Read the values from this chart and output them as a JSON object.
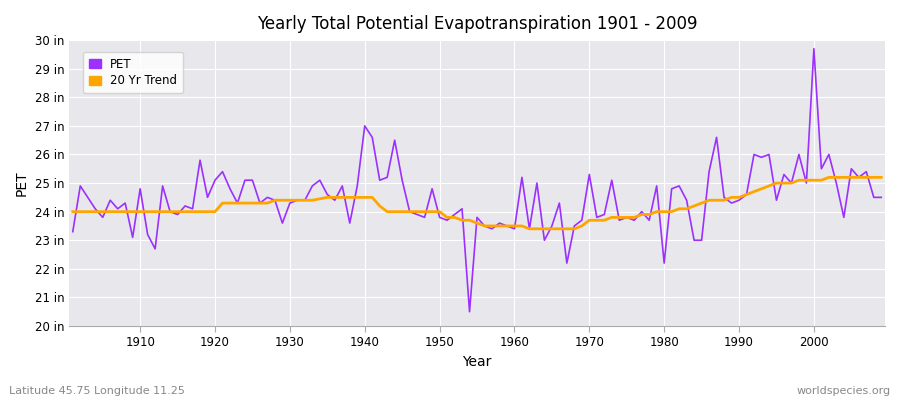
{
  "title": "Yearly Total Potential Evapotranspiration 1901 - 2009",
  "xlabel": "Year",
  "ylabel": "PET",
  "subtitle_left": "Latitude 45.75 Longitude 11.25",
  "subtitle_right": "worldspecies.org",
  "ylim": [
    20,
    30
  ],
  "ytick_labels": [
    "20 in",
    "21 in",
    "22 in",
    "23 in",
    "24 in",
    "25 in",
    "26 in",
    "27 in",
    "28 in",
    "29 in",
    "30 in"
  ],
  "ytick_values": [
    20,
    21,
    22,
    23,
    24,
    25,
    26,
    27,
    28,
    29,
    30
  ],
  "xtick_values": [
    1910,
    1920,
    1930,
    1940,
    1950,
    1960,
    1970,
    1980,
    1990,
    2000
  ],
  "pet_color": "#9B30FF",
  "trend_color": "#FFA500",
  "fig_background": "#FFFFFF",
  "plot_background": "#E8E8EC",
  "grid_color": "#FFFFFF",
  "pet_linewidth": 1.2,
  "trend_linewidth": 2.0,
  "years": [
    1901,
    1902,
    1903,
    1904,
    1905,
    1906,
    1907,
    1908,
    1909,
    1910,
    1911,
    1912,
    1913,
    1914,
    1915,
    1916,
    1917,
    1918,
    1919,
    1920,
    1921,
    1922,
    1923,
    1924,
    1925,
    1926,
    1927,
    1928,
    1929,
    1930,
    1931,
    1932,
    1933,
    1934,
    1935,
    1936,
    1937,
    1938,
    1939,
    1940,
    1941,
    1942,
    1943,
    1944,
    1945,
    1946,
    1947,
    1948,
    1949,
    1950,
    1951,
    1952,
    1953,
    1954,
    1955,
    1956,
    1957,
    1958,
    1959,
    1960,
    1961,
    1962,
    1963,
    1964,
    1965,
    1966,
    1967,
    1968,
    1969,
    1970,
    1971,
    1972,
    1973,
    1974,
    1975,
    1976,
    1977,
    1978,
    1979,
    1980,
    1981,
    1982,
    1983,
    1984,
    1985,
    1986,
    1987,
    1988,
    1989,
    1990,
    1991,
    1992,
    1993,
    1994,
    1995,
    1996,
    1997,
    1998,
    1999,
    2000,
    2001,
    2002,
    2003,
    2004,
    2005,
    2006,
    2007,
    2008,
    2009
  ],
  "pet_values": [
    23.3,
    24.9,
    24.5,
    24.1,
    23.8,
    24.4,
    24.1,
    24.3,
    23.1,
    24.8,
    23.2,
    22.7,
    24.9,
    24.0,
    23.9,
    24.2,
    24.1,
    25.8,
    24.5,
    25.1,
    25.4,
    24.8,
    24.3,
    25.1,
    25.1,
    24.3,
    24.5,
    24.4,
    23.6,
    24.3,
    24.4,
    24.4,
    24.9,
    25.1,
    24.6,
    24.4,
    24.9,
    23.6,
    24.9,
    27.0,
    26.6,
    25.1,
    25.2,
    26.5,
    25.1,
    24.0,
    23.9,
    23.8,
    24.8,
    23.8,
    23.7,
    23.9,
    24.1,
    20.5,
    23.8,
    23.5,
    23.4,
    23.6,
    23.5,
    23.4,
    25.2,
    23.4,
    25.0,
    23.0,
    23.5,
    24.3,
    22.2,
    23.5,
    23.7,
    25.3,
    23.8,
    23.9,
    25.1,
    23.7,
    23.8,
    23.7,
    24.0,
    23.7,
    24.9,
    22.2,
    24.8,
    24.9,
    24.4,
    23.0,
    23.0,
    25.4,
    26.6,
    24.5,
    24.3,
    24.4,
    24.6,
    26.0,
    25.9,
    26.0,
    24.4,
    25.3,
    25.0,
    26.0,
    25.0,
    29.7,
    25.5,
    26.0,
    25.0,
    23.8,
    25.5,
    25.2,
    25.4,
    24.5,
    24.5
  ],
  "trend_values": [
    24.0,
    24.0,
    24.0,
    24.0,
    24.0,
    24.0,
    24.0,
    24.0,
    24.0,
    24.0,
    24.0,
    24.0,
    24.0,
    24.0,
    24.0,
    24.0,
    24.0,
    24.0,
    24.0,
    24.0,
    24.3,
    24.3,
    24.3,
    24.3,
    24.3,
    24.3,
    24.3,
    24.4,
    24.4,
    24.4,
    24.4,
    24.4,
    24.4,
    24.45,
    24.5,
    24.5,
    24.5,
    24.5,
    24.5,
    24.5,
    24.5,
    24.2,
    24.0,
    24.0,
    24.0,
    24.0,
    24.0,
    24.0,
    24.0,
    24.0,
    23.8,
    23.8,
    23.7,
    23.7,
    23.6,
    23.5,
    23.5,
    23.5,
    23.5,
    23.5,
    23.5,
    23.4,
    23.4,
    23.4,
    23.4,
    23.4,
    23.4,
    23.4,
    23.5,
    23.7,
    23.7,
    23.7,
    23.8,
    23.8,
    23.8,
    23.8,
    23.9,
    23.9,
    24.0,
    24.0,
    24.0,
    24.1,
    24.1,
    24.2,
    24.3,
    24.4,
    24.4,
    24.4,
    24.5,
    24.5,
    24.6,
    24.7,
    24.8,
    24.9,
    25.0,
    25.0,
    25.0,
    25.1,
    25.1,
    25.1,
    25.1,
    25.2,
    25.2,
    25.2,
    25.2,
    25.2,
    25.2,
    25.2,
    25.2
  ]
}
